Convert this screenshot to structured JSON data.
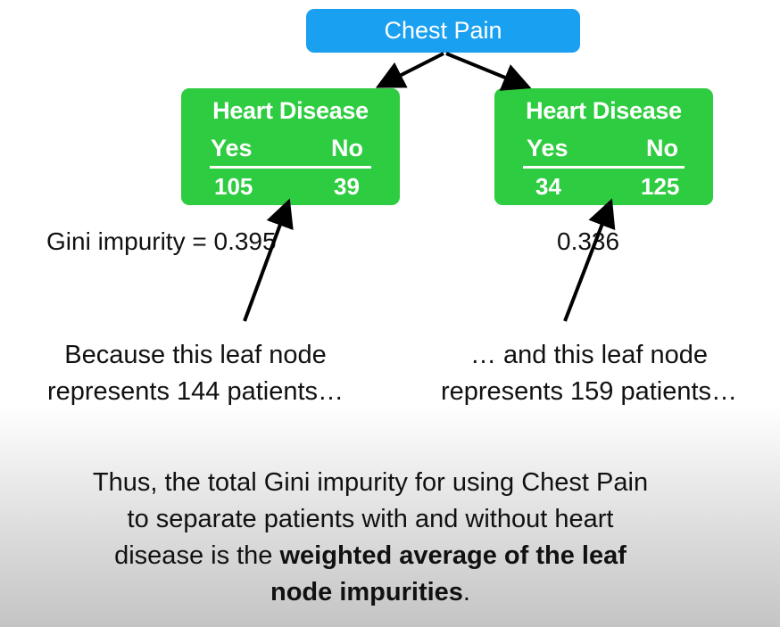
{
  "root": {
    "label": "Chest Pain"
  },
  "leaves": [
    {
      "title": "Heart Disease",
      "yes_label": "Yes",
      "no_label": "No",
      "yes_value": "105",
      "no_value": "39",
      "gini": "Gini impurity = 0.395",
      "caption_line1": "Because this leaf node",
      "caption_line2": "represents 144 patients…"
    },
    {
      "title": "Heart Disease",
      "yes_label": "Yes",
      "no_label": "No",
      "yes_value": "34",
      "no_value": "125",
      "gini": "0.336",
      "caption_line1": "… and this leaf node",
      "caption_line2": "represents 159 patients…"
    }
  ],
  "summary": {
    "line1": "Thus, the total Gini impurity for using Chest Pain",
    "line2": "to separate patients with and without heart",
    "line3_plain": "disease is the ",
    "line3_bold": "weighted average of the leaf",
    "line4_bold": "node impurities",
    "line4_plain": "."
  },
  "colors": {
    "root": "#1aa0f0",
    "leaf": "#2ecc40",
    "text": "#111111"
  }
}
